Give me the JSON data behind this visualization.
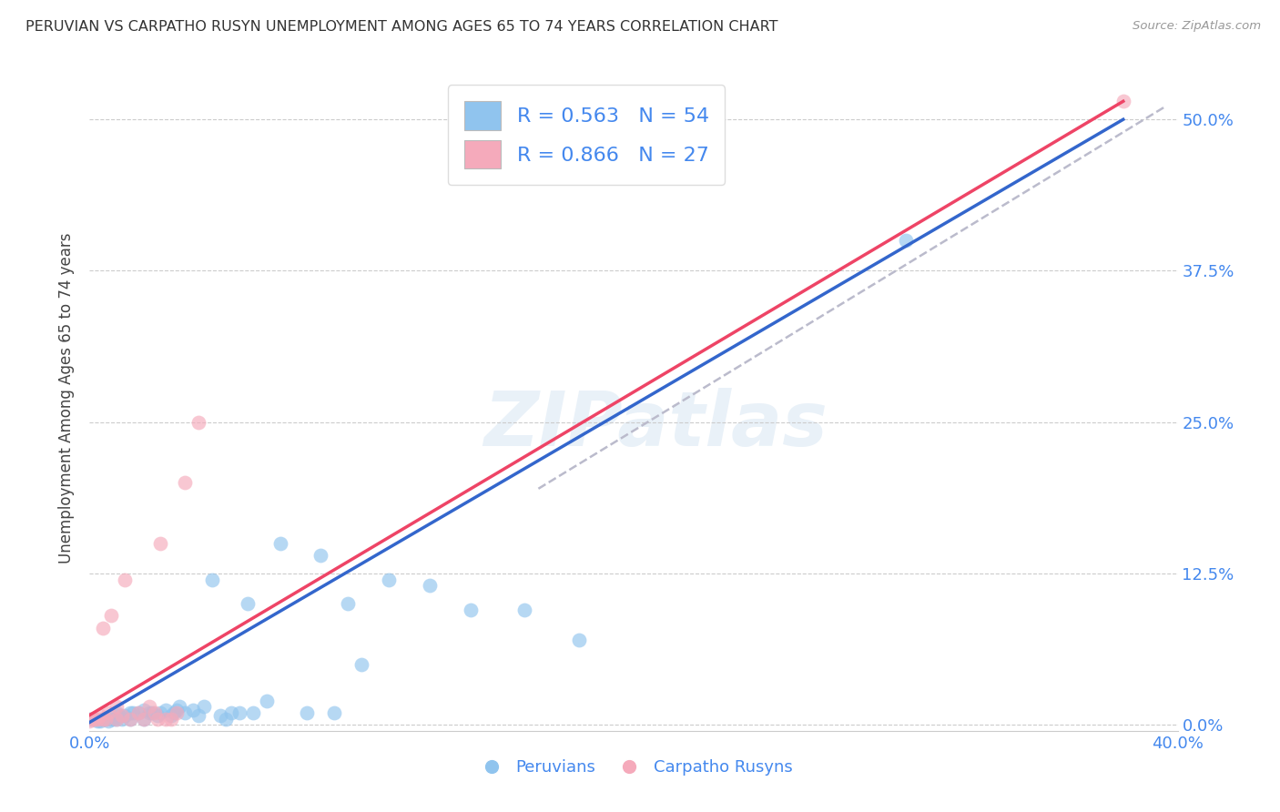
{
  "title": "PERUVIAN VS CARPATHO RUSYN UNEMPLOYMENT AMONG AGES 65 TO 74 YEARS CORRELATION CHART",
  "source": "Source: ZipAtlas.com",
  "ylabel": "Unemployment Among Ages 65 to 74 years",
  "xlim": [
    0.0,
    0.4
  ],
  "ylim": [
    -0.005,
    0.545
  ],
  "xticks": [
    0.0,
    0.05,
    0.1,
    0.15,
    0.2,
    0.25,
    0.3,
    0.35,
    0.4
  ],
  "yticks": [
    0.0,
    0.125,
    0.25,
    0.375,
    0.5
  ],
  "ytick_labels": [
    "0.0%",
    "12.5%",
    "25.0%",
    "37.5%",
    "50.0%"
  ],
  "xtick_labels": [
    "0.0%",
    "",
    "",
    "",
    "",
    "",
    "",
    "",
    "40.0%"
  ],
  "blue_color": "#90C4EE",
  "pink_color": "#F5AABB",
  "blue_line_color": "#3366CC",
  "pink_line_color": "#EE4466",
  "dashed_line_color": "#BBBBCC",
  "watermark": "ZIPatlas",
  "blue_scatter_x": [
    0.0,
    0.001,
    0.002,
    0.003,
    0.004,
    0.005,
    0.006,
    0.007,
    0.008,
    0.009,
    0.01,
    0.01,
    0.011,
    0.012,
    0.013,
    0.015,
    0.015,
    0.016,
    0.018,
    0.02,
    0.02,
    0.022,
    0.023,
    0.025,
    0.026,
    0.028,
    0.03,
    0.031,
    0.032,
    0.033,
    0.035,
    0.038,
    0.04,
    0.042,
    0.045,
    0.048,
    0.05,
    0.052,
    0.055,
    0.058,
    0.06,
    0.065,
    0.07,
    0.08,
    0.085,
    0.09,
    0.095,
    0.1,
    0.11,
    0.125,
    0.14,
    0.16,
    0.18,
    0.3
  ],
  "blue_scatter_y": [
    0.005,
    0.005,
    0.005,
    0.003,
    0.003,
    0.005,
    0.005,
    0.003,
    0.005,
    0.005,
    0.005,
    0.01,
    0.008,
    0.005,
    0.008,
    0.005,
    0.01,
    0.01,
    0.01,
    0.005,
    0.012,
    0.01,
    0.01,
    0.008,
    0.01,
    0.012,
    0.008,
    0.01,
    0.012,
    0.015,
    0.01,
    0.012,
    0.008,
    0.015,
    0.12,
    0.008,
    0.005,
    0.01,
    0.01,
    0.1,
    0.01,
    0.02,
    0.15,
    0.01,
    0.14,
    0.01,
    0.1,
    0.05,
    0.12,
    0.115,
    0.095,
    0.095,
    0.07,
    0.4
  ],
  "pink_scatter_x": [
    0.0,
    0.001,
    0.002,
    0.003,
    0.004,
    0.005,
    0.005,
    0.006,
    0.007,
    0.008,
    0.01,
    0.01,
    0.012,
    0.013,
    0.015,
    0.018,
    0.02,
    0.022,
    0.024,
    0.025,
    0.026,
    0.028,
    0.03,
    0.032,
    0.035,
    0.04,
    0.38
  ],
  "pink_scatter_y": [
    0.003,
    0.005,
    0.005,
    0.005,
    0.008,
    0.005,
    0.08,
    0.005,
    0.01,
    0.09,
    0.005,
    0.015,
    0.008,
    0.12,
    0.005,
    0.01,
    0.005,
    0.015,
    0.01,
    0.005,
    0.15,
    0.005,
    0.005,
    0.01,
    0.2,
    0.25,
    0.515
  ],
  "blue_line_x0": 0.0,
  "blue_line_x1": 0.38,
  "blue_line_y0": 0.002,
  "blue_line_y1": 0.5,
  "pink_line_x0": 0.0,
  "pink_line_x1": 0.38,
  "pink_line_y0": 0.008,
  "pink_line_y1": 0.515,
  "dashed_line_x0": 0.165,
  "dashed_line_x1": 0.395,
  "dashed_line_y0": 0.195,
  "dashed_line_y1": 0.51,
  "background_color": "#FFFFFF",
  "grid_color": "#CCCCCC",
  "title_color": "#333333",
  "axis_label_color": "#444444",
  "tick_label_color": "#4488EE",
  "legend_blue_label": "R = 0.563   N = 54",
  "legend_pink_label": "R = 0.866   N = 27",
  "peruvians_label": "Peruvians",
  "carpatho_label": "Carpatho Rusyns"
}
